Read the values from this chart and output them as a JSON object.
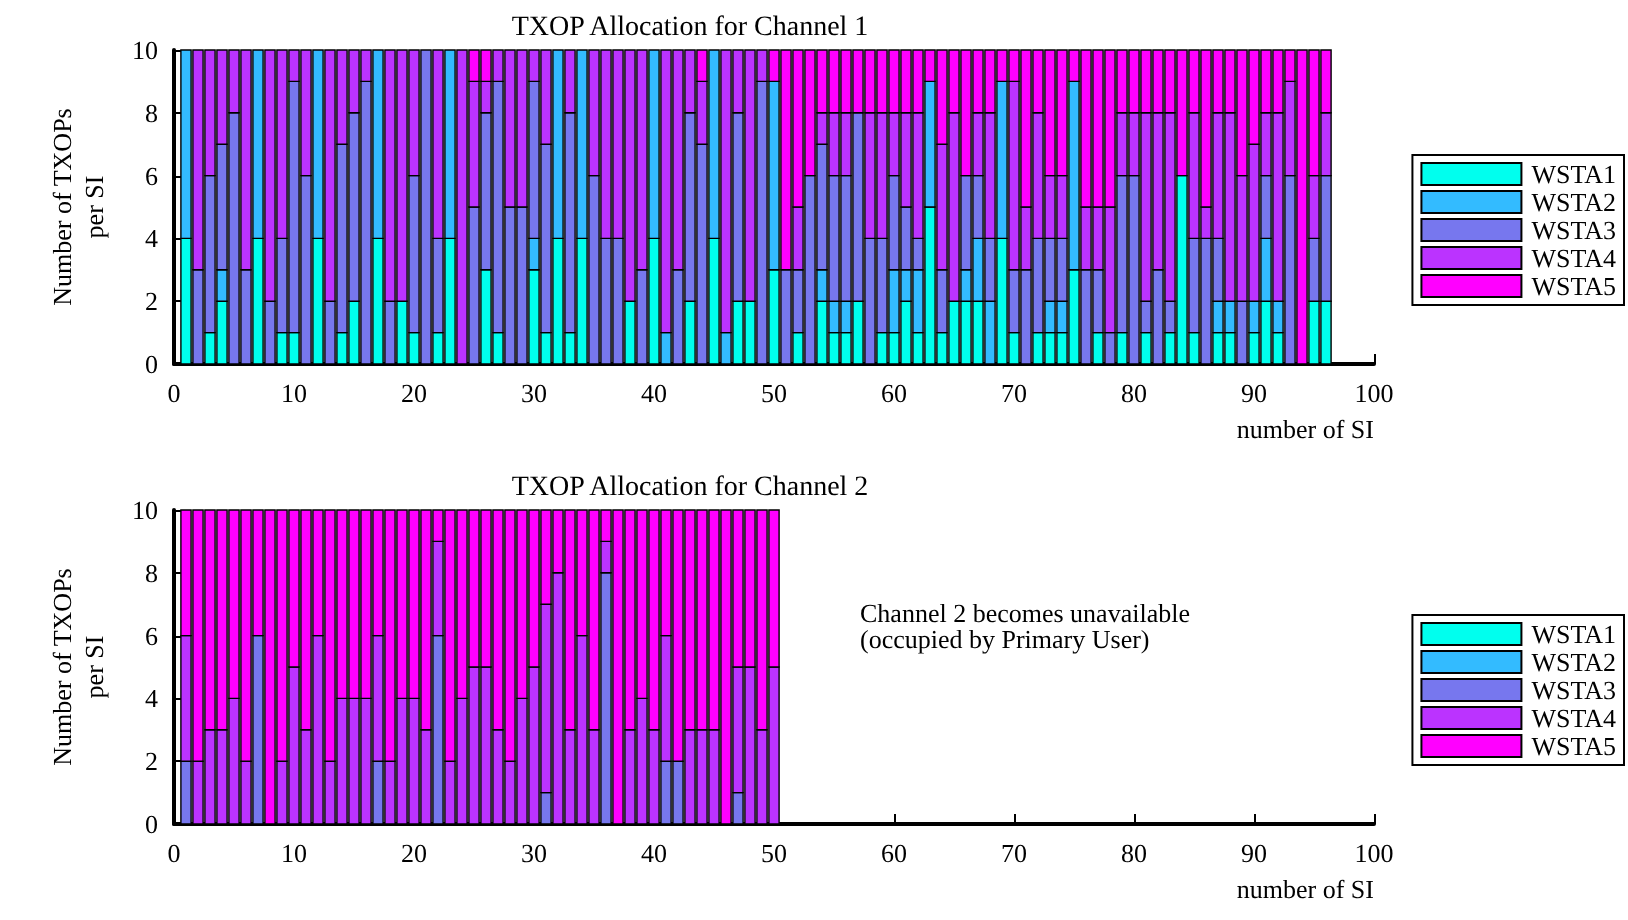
{
  "chart_data": [
    {
      "type": "bar",
      "title": "TXOP Allocation for Channel 1",
      "xlabel": "number of SI",
      "ylabel": "Number of TXOPs\nper SI",
      "stacked": true,
      "legend": "right",
      "grid": false,
      "x": [
        1,
        2,
        3,
        4,
        5,
        6,
        7,
        8,
        9,
        10,
        11,
        12,
        13,
        14,
        15,
        16,
        17,
        18,
        19,
        20,
        21,
        22,
        23,
        24,
        25,
        26,
        27,
        28,
        29,
        30,
        31,
        32,
        33,
        34,
        35,
        36,
        37,
        38,
        39,
        40,
        41,
        42,
        43,
        44,
        45,
        46,
        47,
        48,
        49,
        50,
        51,
        52,
        53,
        54,
        55,
        56,
        57,
        58,
        59,
        60,
        61,
        62,
        63,
        64,
        65,
        66,
        67,
        68,
        69,
        70,
        71,
        72,
        73,
        74,
        75,
        76,
        77,
        78,
        79,
        80,
        81,
        82,
        83,
        84,
        85,
        86,
        87,
        88,
        89,
        90,
        91,
        92,
        93,
        94,
        95,
        96
      ],
      "xlim": [
        0,
        100
      ],
      "xticks": [
        0,
        10,
        20,
        30,
        40,
        50,
        60,
        70,
        80,
        90,
        100
      ],
      "ylim": [
        0,
        10
      ],
      "yticks": [
        0,
        2,
        4,
        6,
        8,
        10
      ],
      "series": [
        {
          "name": "WSTA1",
          "color": "#00ffee",
          "values": [
            4,
            0,
            1,
            2,
            0,
            0,
            4,
            0,
            1,
            1,
            0,
            4,
            0,
            1,
            2,
            0,
            4,
            0,
            2,
            1,
            0,
            1,
            4,
            0,
            0,
            3,
            1,
            0,
            0,
            3,
            1,
            4,
            1,
            4,
            0,
            0,
            0,
            2,
            0,
            4,
            0,
            0,
            2,
            0,
            4,
            0,
            2,
            2,
            0,
            3,
            0,
            1,
            0,
            2,
            1,
            1,
            2,
            0,
            1,
            1,
            2,
            1,
            5,
            1,
            2,
            2,
            2,
            0,
            4,
            1,
            0,
            1,
            1,
            1,
            3,
            0,
            1,
            0,
            1,
            0,
            1,
            0,
            1,
            6,
            1,
            0,
            1,
            1,
            0,
            1,
            2,
            1,
            0,
            0,
            2,
            2
          ]
        },
        {
          "name": "WSTA2",
          "color": "#33bbff",
          "values": [
            6,
            0,
            0,
            1,
            0,
            0,
            6,
            0,
            0,
            0,
            0,
            6,
            0,
            0,
            0,
            0,
            6,
            0,
            0,
            0,
            0,
            0,
            6,
            0,
            0,
            0,
            0,
            0,
            0,
            1,
            0,
            6,
            0,
            6,
            0,
            0,
            0,
            0,
            0,
            6,
            1,
            0,
            0,
            0,
            6,
            1,
            0,
            0,
            0,
            6,
            0,
            0,
            0,
            1,
            1,
            1,
            0,
            0,
            0,
            2,
            1,
            2,
            4,
            0,
            0,
            1,
            2,
            2,
            5,
            0,
            0,
            0,
            1,
            1,
            6,
            0,
            0,
            0,
            0,
            0,
            0,
            0,
            0,
            0,
            0,
            0,
            1,
            1,
            0,
            1,
            2,
            1,
            0,
            0,
            0,
            0
          ]
        },
        {
          "name": "WSTA3",
          "color": "#7777ee",
          "values": [
            0,
            3,
            5,
            4,
            8,
            3,
            0,
            2,
            3,
            8,
            6,
            0,
            2,
            6,
            6,
            9,
            0,
            2,
            0,
            5,
            10,
            3,
            0,
            0,
            5,
            5,
            8,
            5,
            5,
            5,
            6,
            0,
            7,
            0,
            6,
            4,
            4,
            0,
            3,
            0,
            0,
            3,
            6,
            7,
            0,
            0,
            6,
            0,
            9,
            0,
            3,
            2,
            6,
            4,
            4,
            4,
            6,
            4,
            3,
            3,
            2,
            1,
            0,
            2,
            0,
            3,
            2,
            2,
            0,
            2,
            3,
            3,
            2,
            2,
            0,
            3,
            2,
            1,
            5,
            6,
            1,
            3,
            1,
            0,
            3,
            4,
            2,
            0,
            2,
            0,
            2,
            0,
            6,
            0,
            2,
            4
          ]
        },
        {
          "name": "WSTA4",
          "color": "#bb33ff",
          "values": [
            0,
            7,
            4,
            3,
            2,
            7,
            0,
            8,
            6,
            1,
            4,
            0,
            8,
            3,
            2,
            1,
            0,
            8,
            8,
            4,
            0,
            6,
            0,
            10,
            4,
            1,
            1,
            5,
            5,
            1,
            3,
            0,
            2,
            0,
            4,
            6,
            6,
            8,
            7,
            0,
            9,
            7,
            2,
            2,
            0,
            9,
            2,
            8,
            1,
            0,
            0,
            2,
            0,
            1,
            2,
            2,
            0,
            4,
            4,
            2,
            3,
            4,
            0,
            4,
            6,
            0,
            2,
            4,
            0,
            6,
            2,
            4,
            2,
            2,
            0,
            2,
            2,
            4,
            2,
            2,
            6,
            5,
            6,
            0,
            4,
            1,
            4,
            6,
            4,
            5,
            2,
            6,
            3,
            0,
            2,
            2
          ]
        },
        {
          "name": "WSTA5",
          "color": "#ff00ff",
          "values": [
            0,
            0,
            0,
            0,
            0,
            0,
            0,
            0,
            0,
            0,
            0,
            0,
            0,
            0,
            0,
            0,
            0,
            0,
            0,
            0,
            0,
            0,
            0,
            0,
            1,
            1,
            0,
            0,
            0,
            0,
            0,
            0,
            0,
            0,
            0,
            0,
            0,
            0,
            0,
            0,
            0,
            0,
            0,
            1,
            0,
            0,
            0,
            0,
            0,
            1,
            7,
            5,
            4,
            2,
            2,
            2,
            2,
            2,
            2,
            2,
            2,
            2,
            1,
            3,
            2,
            4,
            2,
            2,
            1,
            1,
            5,
            2,
            4,
            4,
            1,
            5,
            5,
            5,
            2,
            2,
            2,
            2,
            2,
            4,
            2,
            5,
            2,
            2,
            4,
            3,
            2,
            2,
            1,
            10,
            4,
            2
          ]
        }
      ]
    },
    {
      "type": "bar",
      "title": "TXOP Allocation for Channel 2",
      "xlabel": "number of SI",
      "ylabel": "Number of TXOPs\nper SI",
      "stacked": true,
      "legend": "right",
      "grid": false,
      "annotations": [
        "Channel 2 becomes unavailable\n(occupied by Primary User)"
      ],
      "x": [
        1,
        2,
        3,
        4,
        5,
        6,
        7,
        8,
        9,
        10,
        11,
        12,
        13,
        14,
        15,
        16,
        17,
        18,
        19,
        20,
        21,
        22,
        23,
        24,
        25,
        26,
        27,
        28,
        29,
        30,
        31,
        32,
        33,
        34,
        35,
        36,
        37,
        38,
        39,
        40,
        41,
        42,
        43,
        44,
        45,
        46,
        47,
        48,
        49,
        50
      ],
      "xlim": [
        0,
        100
      ],
      "xticks": [
        0,
        10,
        20,
        30,
        40,
        50,
        60,
        70,
        80,
        90,
        100
      ],
      "ylim": [
        0,
        10
      ],
      "yticks": [
        0,
        2,
        4,
        6,
        8,
        10
      ],
      "series": [
        {
          "name": "WSTA1",
          "color": "#00ffee",
          "values": [
            0,
            0,
            0,
            0,
            0,
            0,
            0,
            0,
            0,
            0,
            0,
            0,
            0,
            0,
            0,
            0,
            0,
            0,
            0,
            0,
            0,
            0,
            0,
            0,
            0,
            0,
            0,
            0,
            0,
            0,
            0,
            0,
            0,
            0,
            0,
            0,
            0,
            0,
            0,
            0,
            0,
            0,
            0,
            0,
            0,
            0,
            0,
            0,
            0,
            0
          ]
        },
        {
          "name": "WSTA2",
          "color": "#33bbff",
          "values": [
            0,
            0,
            0,
            0,
            0,
            0,
            0,
            0,
            0,
            0,
            0,
            0,
            0,
            0,
            0,
            0,
            0,
            0,
            0,
            0,
            0,
            0,
            0,
            0,
            0,
            0,
            0,
            0,
            0,
            0,
            0,
            0,
            0,
            0,
            0,
            0,
            0,
            0,
            0,
            0,
            0,
            0,
            0,
            0,
            0,
            0,
            0,
            0,
            0,
            0
          ]
        },
        {
          "name": "WSTA3",
          "color": "#7777ee",
          "values": [
            2,
            0,
            0,
            0,
            0,
            0,
            6,
            0,
            0,
            0,
            0,
            0,
            0,
            0,
            0,
            0,
            2,
            0,
            0,
            0,
            0,
            6,
            0,
            0,
            0,
            0,
            0,
            0,
            0,
            0,
            1,
            0,
            0,
            0,
            0,
            8,
            0,
            0,
            0,
            0,
            2,
            2,
            0,
            0,
            0,
            0,
            1,
            0,
            0,
            0
          ]
        },
        {
          "name": "WSTA4",
          "color": "#bb33ff",
          "values": [
            4,
            2,
            3,
            3,
            4,
            2,
            0,
            0,
            2,
            5,
            3,
            6,
            2,
            4,
            4,
            4,
            4,
            2,
            4,
            4,
            3,
            3,
            2,
            4,
            5,
            5,
            3,
            2,
            4,
            5,
            6,
            8,
            3,
            6,
            3,
            1,
            0,
            3,
            4,
            3,
            4,
            0,
            3,
            3,
            3,
            0,
            4,
            5,
            3,
            5
          ]
        },
        {
          "name": "WSTA5",
          "color": "#ff00ff",
          "values": [
            4,
            8,
            7,
            7,
            6,
            8,
            4,
            10,
            8,
            5,
            7,
            4,
            8,
            6,
            6,
            6,
            4,
            8,
            6,
            6,
            7,
            1,
            8,
            6,
            5,
            5,
            7,
            8,
            6,
            5,
            3,
            2,
            7,
            4,
            7,
            1,
            10,
            7,
            6,
            7,
            4,
            8,
            7,
            7,
            7,
            10,
            5,
            5,
            7,
            5
          ]
        }
      ]
    }
  ]
}
